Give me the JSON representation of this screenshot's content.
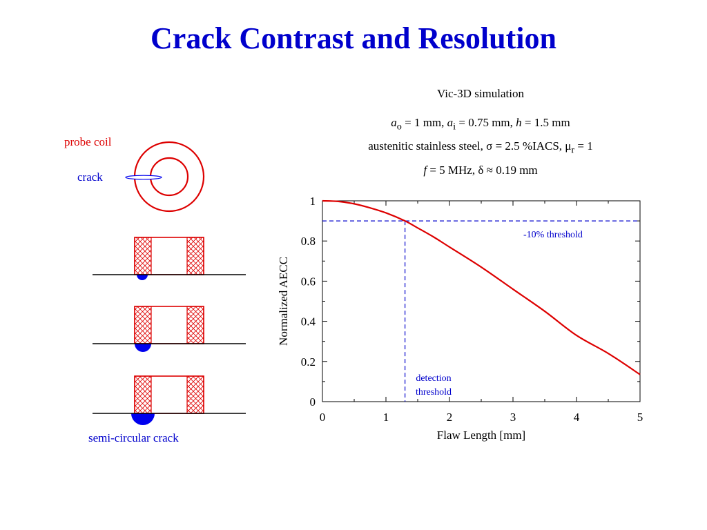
{
  "slide": {
    "title": "Crack Contrast and Resolution"
  },
  "simulation": {
    "heading": "Vic-3D simulation",
    "line1": {
      "ao_sym": "a",
      "ao_sub": "o",
      "ao_val": " = 1 mm, ",
      "ai_sym": "a",
      "ai_sub": "i",
      "ai_val": " = 0.75 mm, ",
      "h_sym": "h",
      "h_val": " = 1.5 mm"
    },
    "line2": {
      "text": "austenitic stainless steel, σ = 2.5 %IACS, μ",
      "sub": "r",
      "tail": " = 1"
    },
    "line3": {
      "f_sym": "f",
      "text": "  = 5 MHz, δ ≈ 0.19 mm"
    }
  },
  "diagram": {
    "probe_coil_label": "probe coil",
    "crack_label": "crack",
    "semi_circular_label": "semi-circular crack",
    "colors": {
      "coil": "#dd0000",
      "crack": "#0000ee"
    }
  },
  "chart_data": {
    "type": "line",
    "xlabel": "Flaw Length [mm]",
    "ylabel": "Normalized AECC",
    "xlim": [
      0,
      5
    ],
    "ylim": [
      0,
      1
    ],
    "xticks": [
      "0",
      "1",
      "2",
      "3",
      "4",
      "5"
    ],
    "yticks": [
      "0",
      "0.2",
      "0.4",
      "0.6",
      "0.8",
      "1"
    ],
    "grid": false,
    "series": [
      {
        "color": "#dd0000",
        "x": [
          0,
          0.25,
          0.5,
          0.75,
          1.0,
          1.3,
          1.5,
          1.75,
          2.0,
          2.5,
          3.0,
          3.5,
          4.0,
          4.5,
          5.0
        ],
        "y": [
          1.0,
          0.997,
          0.985,
          0.965,
          0.94,
          0.9,
          0.865,
          0.82,
          0.77,
          0.67,
          0.56,
          0.45,
          0.33,
          0.24,
          0.135
        ]
      }
    ],
    "threshold": {
      "y": 0.9,
      "x": 1.3,
      "color": "#0000cc",
      "label": "-10% threshold",
      "detection_label_1": "detection",
      "detection_label_2": "threshold"
    }
  }
}
